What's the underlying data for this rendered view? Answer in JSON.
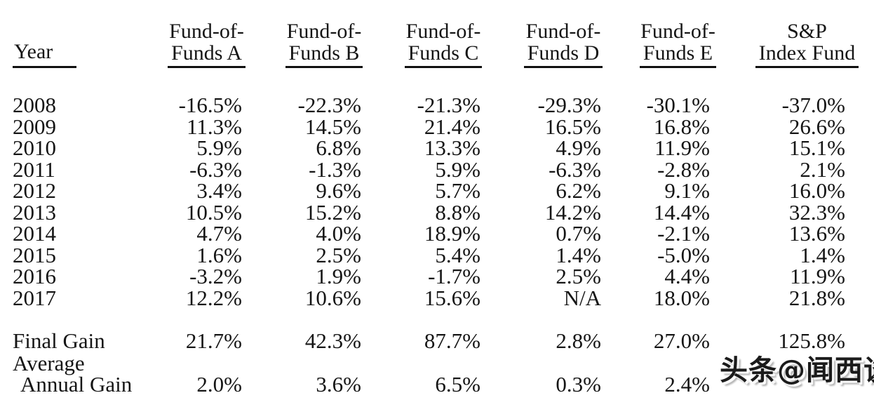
{
  "header": {
    "cols": [
      {
        "line1": "",
        "line2": "Year"
      },
      {
        "line1": "Fund-of-",
        "line2": "Funds A"
      },
      {
        "line1": "Fund-of-",
        "line2": "Funds B"
      },
      {
        "line1": "Fund-of-",
        "line2": "Funds C"
      },
      {
        "line1": "Fund-of-",
        "line2": "Funds D"
      },
      {
        "line1": "Fund-of-",
        "line2": "Funds E"
      },
      {
        "line1": "S&P",
        "line2": "Index Fund"
      }
    ]
  },
  "rows": [
    {
      "year": "2008",
      "values": [
        "-16.5%",
        "-22.3%",
        "-21.3%",
        "-29.3%",
        "-30.1%",
        "-37.0%"
      ]
    },
    {
      "year": "2009",
      "values": [
        "11.3%",
        "14.5%",
        "21.4%",
        "16.5%",
        "16.8%",
        "26.6%"
      ]
    },
    {
      "year": "2010",
      "values": [
        "5.9%",
        "6.8%",
        "13.3%",
        "4.9%",
        "11.9%",
        "15.1%"
      ]
    },
    {
      "year": "2011",
      "values": [
        "-6.3%",
        "-1.3%",
        "5.9%",
        "-6.3%",
        "-2.8%",
        "2.1%"
      ]
    },
    {
      "year": "2012",
      "values": [
        "3.4%",
        "9.6%",
        "5.7%",
        "6.2%",
        "9.1%",
        "16.0%"
      ]
    },
    {
      "year": "2013",
      "values": [
        "10.5%",
        "15.2%",
        "8.8%",
        "14.2%",
        "14.4%",
        "32.3%"
      ]
    },
    {
      "year": "2014",
      "values": [
        "4.7%",
        "4.0%",
        "18.9%",
        "0.7%",
        "-2.1%",
        "13.6%"
      ]
    },
    {
      "year": "2015",
      "values": [
        "1.6%",
        "2.5%",
        "5.4%",
        "1.4%",
        "-5.0%",
        "1.4%"
      ]
    },
    {
      "year": "2016",
      "values": [
        "-3.2%",
        "1.9%",
        "-1.7%",
        "2.5%",
        "4.4%",
        "11.9%"
      ]
    },
    {
      "year": "2017",
      "values": [
        "12.2%",
        "10.6%",
        "15.6%",
        "N/A",
        "18.0%",
        "21.8%"
      ]
    }
  ],
  "summary": {
    "final_gain_label": "Final Gain",
    "final_gain": [
      "21.7%",
      "42.3%",
      "87.7%",
      "2.8%",
      "27.0%",
      "125.8%"
    ],
    "avg_label_line1": "Average",
    "avg_label_line2": "Annual Gain",
    "average_annual_gain": [
      "2.0%",
      "3.6%",
      "6.5%",
      "0.3%",
      "2.4%",
      ""
    ]
  },
  "watermark": {
    "text": "头条@闻西谈"
  },
  "colors": {
    "background": "#ffffff",
    "text": "#151515",
    "rule": "#111111"
  }
}
